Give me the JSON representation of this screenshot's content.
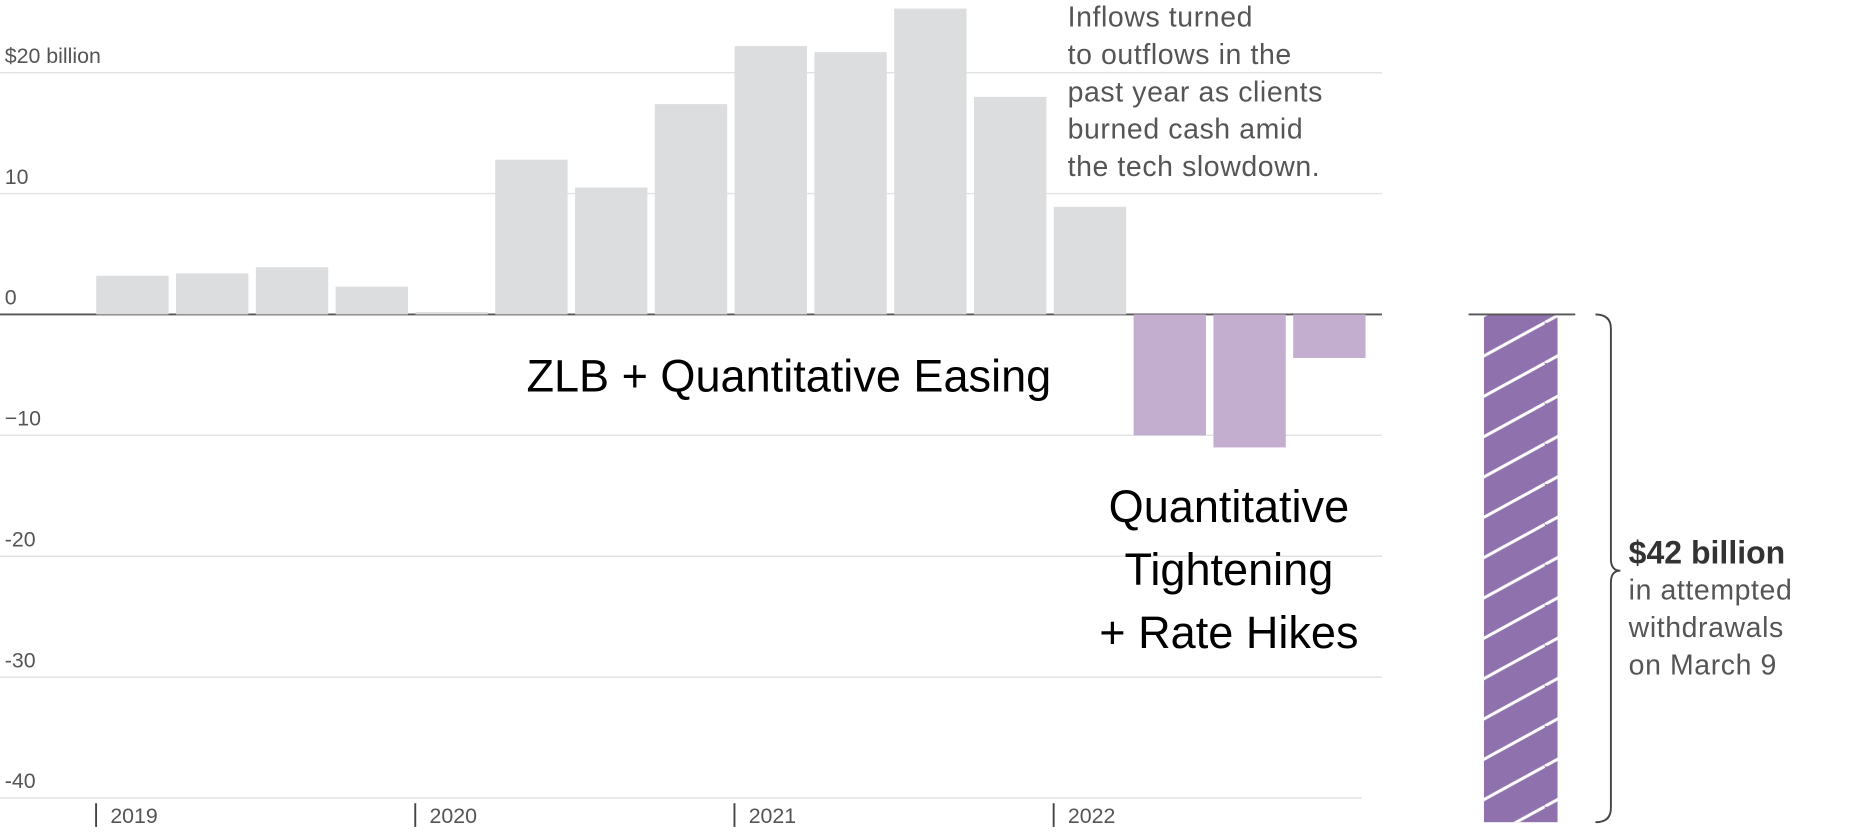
{
  "chart_data": {
    "type": "bar",
    "categories": [
      "2019",
      null,
      null,
      null,
      "2020",
      null,
      null,
      null,
      "2021",
      null,
      null,
      null,
      "2022",
      null,
      null,
      null
    ],
    "values": [
      3.2,
      3.4,
      3.9,
      2.3,
      0.2,
      12.8,
      10.5,
      17.4,
      22.2,
      21.7,
      25.3,
      18.0,
      8.9,
      -10.0,
      -11.0,
      -3.6
    ],
    "colors": {
      "positive": "#dcdddf",
      "negative": "#c4aecf"
    },
    "ylim": [
      -42,
      26
    ],
    "yticks": [
      -40,
      -30,
      -20,
      {
        "value": -10,
        "label": "−10"
      },
      0,
      10,
      {
        "value": 20,
        "label": "$20 billion"
      }
    ],
    "grid": true,
    "annotation": [
      "Inflows turned",
      "to outflows in the",
      "past year as clients",
      "burned cash amid",
      "the tech slowdown."
    ],
    "regime_labels": [
      [
        "ZLB + Quantitative Easing"
      ],
      [
        "Quantitative",
        "Tightening",
        "+ Rate Hikes"
      ]
    ],
    "withdrawal": {
      "value": -42,
      "color": "#8f72ad",
      "title": "$42 billion",
      "text": [
        "in attempted",
        "withdrawals",
        "on March 9"
      ]
    }
  }
}
